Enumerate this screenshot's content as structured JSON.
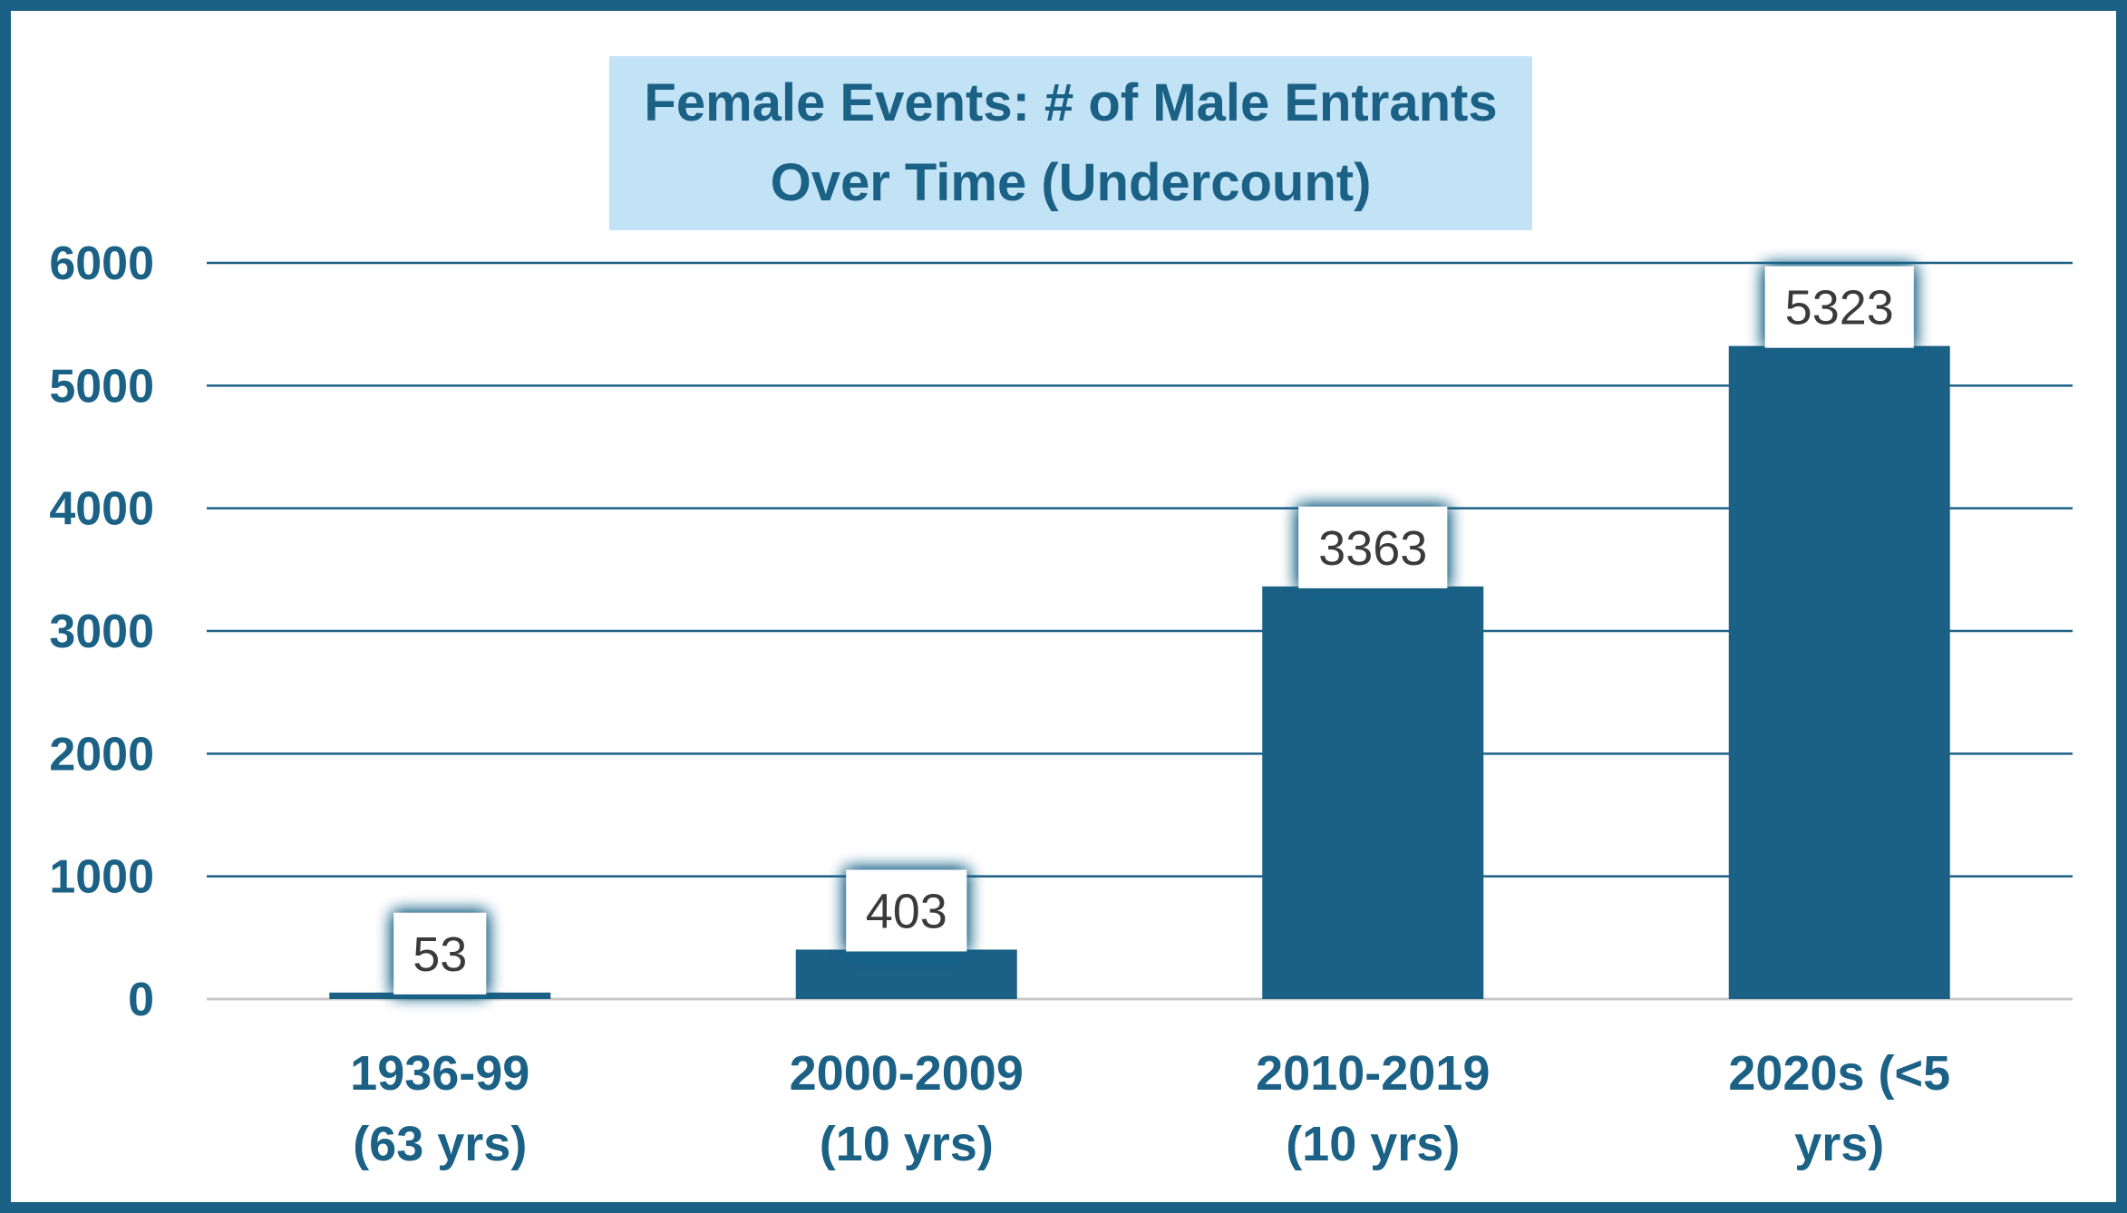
{
  "chart_data": {
    "type": "bar",
    "title_lines": [
      "Female Events: # of Male Entrants",
      "Over Time (Undercount)"
    ],
    "categories": [
      [
        "1936-99",
        "(63 yrs)"
      ],
      [
        "2000-2009",
        "(10 yrs)"
      ],
      [
        "2010-2019",
        "(10 yrs)"
      ],
      [
        "2020s (<5",
        "yrs)"
      ]
    ],
    "values": [
      53,
      403,
      3363,
      5323
    ],
    "data_labels": [
      "53",
      "403",
      "3363",
      "5323"
    ],
    "yticks": [
      "0",
      "1000",
      "2000",
      "3000",
      "4000",
      "5000",
      "6000"
    ],
    "ylim": [
      0,
      6000
    ],
    "grid": true,
    "legend": false,
    "colors": {
      "bar": "#1b6185",
      "frame": "#1b6185",
      "title_bg": "#c2e3f5",
      "text": "#1b6185",
      "label_text": "#3a3a3a",
      "grid": "#1b6185"
    }
  }
}
